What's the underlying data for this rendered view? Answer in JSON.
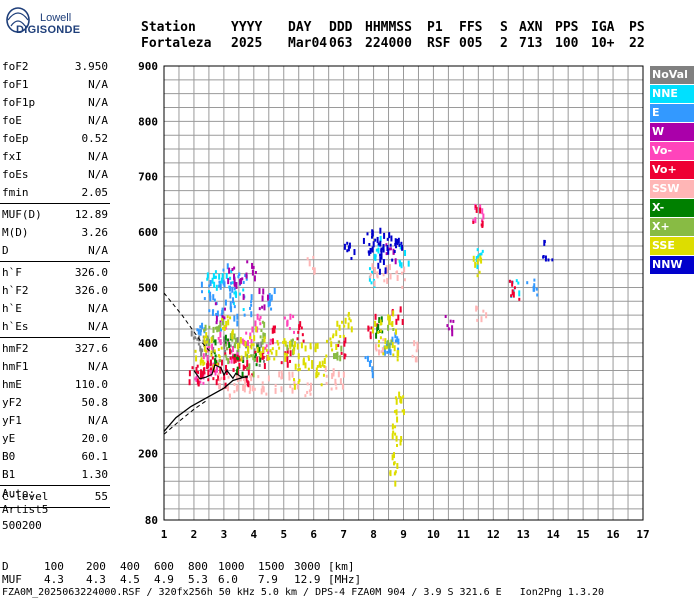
{
  "logo": {
    "line1": "Lowell",
    "line2": "DIGISONDE"
  },
  "header": {
    "labels": [
      "Station",
      "YYYY",
      "DAY",
      "DDD",
      "HHMMSS",
      "P1",
      "FFS",
      "S",
      "AXN",
      "PPS",
      "IGA",
      "PS"
    ],
    "values": [
      "Fortaleza",
      "2025",
      "Mar04",
      "063",
      "224000",
      "RSF",
      "005",
      "2",
      "713",
      "100",
      "10+",
      "22"
    ]
  },
  "params": [
    {
      "label": "foF2",
      "value": "3.950",
      "sep": false
    },
    {
      "label": "foF1",
      "value": "N/A",
      "sep": false
    },
    {
      "label": "foF1p",
      "value": "N/A",
      "sep": false
    },
    {
      "label": "foE",
      "value": "N/A",
      "sep": false
    },
    {
      "label": "foEp",
      "value": "0.52",
      "sep": false
    },
    {
      "label": "fxI",
      "value": "N/A",
      "sep": false
    },
    {
      "label": "foEs",
      "value": "N/A",
      "sep": false
    },
    {
      "label": "fmin",
      "value": "2.05",
      "sep": true
    },
    {
      "label": "MUF(D)",
      "value": "12.89",
      "sep": false
    },
    {
      "label": "M(D)",
      "value": "3.26",
      "sep": false
    },
    {
      "label": "D",
      "value": "N/A",
      "sep": true
    },
    {
      "label": "h`F",
      "value": "326.0",
      "sep": false
    },
    {
      "label": "h`F2",
      "value": "326.0",
      "sep": false
    },
    {
      "label": "h`E",
      "value": "N/A",
      "sep": false
    },
    {
      "label": "h`Es",
      "value": "N/A",
      "sep": true
    },
    {
      "label": "hmF2",
      "value": "327.6",
      "sep": false
    },
    {
      "label": "hmF1",
      "value": "N/A",
      "sep": false
    },
    {
      "label": "hmE",
      "value": "110.0",
      "sep": false
    },
    {
      "label": "yF2",
      "value": "50.8",
      "sep": false
    },
    {
      "label": "yF1",
      "value": "N/A",
      "sep": false
    },
    {
      "label": "yE",
      "value": "20.0",
      "sep": false
    },
    {
      "label": "B0",
      "value": "60.1",
      "sep": false
    },
    {
      "label": "B1",
      "value": "1.30",
      "sep": true
    },
    {
      "label": "C-level",
      "value": "55",
      "sep": true
    }
  ],
  "auto": [
    "Auto:",
    "Artist5",
    "500200"
  ],
  "legend": [
    {
      "label": "NoVal",
      "color": "#808080"
    },
    {
      "label": "NNE",
      "color": "#00e0ff"
    },
    {
      "label": "E",
      "color": "#3399ff"
    },
    {
      "label": "W",
      "color": "#aa00aa"
    },
    {
      "label": "Vo-",
      "color": "#ff44bb"
    },
    {
      "label": "Vo+",
      "color": "#ee0033"
    },
    {
      "label": "SSW",
      "color": "#ffb6b6"
    },
    {
      "label": "X-",
      "color": "#008000"
    },
    {
      "label": "X+",
      "color": "#88bb44"
    },
    {
      "label": "SSE",
      "color": "#dddd00"
    },
    {
      "label": "NNW",
      "color": "#0000cc"
    }
  ],
  "bottom": {
    "d_label": "D",
    "d_values": [
      "100",
      "200",
      "400",
      "600",
      "800",
      "1000",
      "1500",
      "3000",
      "[km]"
    ],
    "muf_label": "MUF",
    "muf_values": [
      "4.3",
      "4.3",
      "4.5",
      "4.9",
      "5.3",
      "6.0",
      "7.9",
      "12.9",
      "[MHz]"
    ]
  },
  "footer": "FZA0M_2025063224000.RSF / 320fx256h 50 kHz 5.0 km / DPS-4 FZA0M 904 / 3.9 S 321.6 E   Ion2Png 1.3.20",
  "chart_data": {
    "type": "scatter",
    "xlim": [
      1,
      17
    ],
    "ylim": [
      80,
      900
    ],
    "x_ticks": [
      1,
      2,
      3,
      4,
      5,
      6,
      7,
      8,
      9,
      10,
      11,
      12,
      13,
      14,
      15,
      16,
      17
    ],
    "y_ticks": [
      80,
      200,
      300,
      400,
      500,
      600,
      700,
      800,
      900
    ],
    "grid": true,
    "clusters": [
      {
        "name": "NoVal",
        "color": "#808080",
        "points": [
          [
            2.1,
            400
          ],
          [
            2.3,
            395
          ],
          [
            2.5,
            405
          ],
          [
            3.1,
            390
          ],
          [
            3.6,
            385
          ],
          [
            4.2,
            380
          ]
        ]
      },
      {
        "name": "NNE",
        "color": "#00e0ff",
        "points": [
          [
            2.6,
            505
          ],
          [
            2.8,
            510
          ],
          [
            3.2,
            515
          ],
          [
            3.5,
            480
          ],
          [
            8.2,
            570
          ],
          [
            9.0,
            560
          ],
          [
            11.5,
            555
          ],
          [
            12.7,
            495
          ],
          [
            7.9,
            520
          ]
        ]
      },
      {
        "name": "E",
        "color": "#3399ff",
        "points": [
          [
            2.4,
            500
          ],
          [
            2.6,
            470
          ],
          [
            2.8,
            440
          ],
          [
            3.0,
            520
          ],
          [
            3.2,
            490
          ],
          [
            3.4,
            450
          ],
          [
            3.6,
            510
          ],
          [
            3.8,
            470
          ],
          [
            2.2,
            420
          ],
          [
            8.5,
            400
          ],
          [
            8.7,
            395
          ],
          [
            7.8,
            360
          ],
          [
            13.3,
            495
          ],
          [
            4.6,
            480
          ]
        ]
      },
      {
        "name": "W",
        "color": "#aa00aa",
        "points": [
          [
            3.3,
            520
          ],
          [
            3.5,
            500
          ],
          [
            3.9,
            530
          ],
          [
            4.3,
            480
          ],
          [
            2.9,
            455
          ],
          [
            10.5,
            430
          ],
          [
            8.6,
            560
          ]
        ]
      },
      {
        "name": "Vo-",
        "color": "#ff44bb",
        "points": [
          [
            2.5,
            380
          ],
          [
            2.7,
            360
          ],
          [
            3.0,
            420
          ],
          [
            3.3,
            370
          ],
          [
            3.8,
            400
          ],
          [
            4.1,
            440
          ],
          [
            4.4,
            390
          ],
          [
            11.5,
            640
          ],
          [
            5.2,
            430
          ],
          [
            2.2,
            345
          ]
        ]
      },
      {
        "name": "Vo+",
        "color": "#ee0033",
        "points": [
          [
            2.0,
            345
          ],
          [
            2.2,
            340
          ],
          [
            2.4,
            350
          ],
          [
            2.6,
            345
          ],
          [
            2.8,
            355
          ],
          [
            3.0,
            340
          ],
          [
            3.2,
            365
          ],
          [
            3.4,
            375
          ],
          [
            3.6,
            355
          ],
          [
            3.8,
            345
          ],
          [
            4.2,
            370
          ],
          [
            4.6,
            410
          ],
          [
            5.1,
            380
          ],
          [
            5.5,
            420
          ],
          [
            6.9,
            390
          ],
          [
            8.0,
            430
          ],
          [
            8.8,
            450
          ],
          [
            11.5,
            630
          ],
          [
            12.7,
            495
          ]
        ]
      },
      {
        "name": "SSW",
        "color": "#ffb6b6",
        "points": [
          [
            3.0,
            325
          ],
          [
            3.3,
            322
          ],
          [
            3.6,
            328
          ],
          [
            4.0,
            330
          ],
          [
            4.4,
            325
          ],
          [
            4.8,
            330
          ],
          [
            5.3,
            328
          ],
          [
            5.8,
            325
          ],
          [
            6.5,
            335
          ],
          [
            6.9,
            330
          ],
          [
            8.0,
            520
          ],
          [
            8.4,
            525
          ],
          [
            8.9,
            515
          ],
          [
            8.2,
            390
          ],
          [
            9.3,
            385
          ],
          [
            11.6,
            460
          ],
          [
            5.9,
            545
          ]
        ]
      },
      {
        "name": "X-",
        "color": "#008000",
        "points": [
          [
            2.6,
            385
          ],
          [
            3.2,
            400
          ],
          [
            3.5,
            360
          ],
          [
            4.1,
            380
          ],
          [
            8.2,
            430
          ]
        ]
      },
      {
        "name": "X+",
        "color": "#88bb44",
        "points": [
          [
            2.5,
            410
          ],
          [
            2.8,
            420
          ],
          [
            3.0,
            380
          ],
          [
            3.4,
            395
          ],
          [
            3.9,
            360
          ],
          [
            4.3,
            420
          ],
          [
            5.2,
            400
          ],
          [
            6.8,
            390
          ],
          [
            8.5,
            410
          ]
        ]
      },
      {
        "name": "SSE",
        "color": "#dddd00",
        "points": [
          [
            2.2,
            380
          ],
          [
            2.5,
            400
          ],
          [
            2.8,
            375
          ],
          [
            3.1,
            430
          ],
          [
            3.4,
            410
          ],
          [
            3.7,
            390
          ],
          [
            4.0,
            405
          ],
          [
            4.3,
            395
          ],
          [
            4.6,
            385
          ],
          [
            4.9,
            400
          ],
          [
            5.2,
            390
          ],
          [
            5.5,
            380
          ],
          [
            5.8,
            370
          ],
          [
            6.0,
            380
          ],
          [
            6.3,
            360
          ],
          [
            6.6,
            400
          ],
          [
            6.9,
            420
          ],
          [
            7.1,
            440
          ],
          [
            8.1,
            420
          ],
          [
            8.3,
            400
          ],
          [
            8.6,
            440
          ],
          [
            8.8,
            380
          ],
          [
            8.9,
            300
          ],
          [
            8.85,
            280
          ],
          [
            8.8,
            240
          ],
          [
            8.75,
            200
          ],
          [
            8.7,
            160
          ],
          [
            11.5,
            540
          ],
          [
            5.4,
            340
          ],
          [
            6.2,
            345
          ]
        ]
      },
      {
        "name": "NNW",
        "color": "#0000cc",
        "points": [
          [
            7.8,
            585
          ],
          [
            8.0,
            580
          ],
          [
            8.2,
            575
          ],
          [
            8.4,
            585
          ],
          [
            8.6,
            570
          ],
          [
            8.8,
            580
          ],
          [
            7.2,
            565
          ],
          [
            13.8,
            570
          ],
          [
            8.3,
            540
          ]
        ]
      }
    ],
    "trace_profile": [
      [
        3.8,
        340
      ],
      [
        3.3,
        332
      ],
      [
        3.0,
        318
      ],
      [
        2.4,
        300
      ],
      [
        1.9,
        285
      ],
      [
        1.4,
        265
      ],
      [
        1.0,
        240
      ]
    ],
    "dashed_profile_upper": [
      [
        1.0,
        490
      ],
      [
        1.6,
        450
      ],
      [
        2.2,
        405
      ],
      [
        2.6,
        380
      ]
    ],
    "dashed_profile_lower": [
      [
        1.0,
        235
      ],
      [
        1.5,
        258
      ],
      [
        2.0,
        280
      ],
      [
        2.4,
        295
      ]
    ],
    "trace_echo": [
      [
        2.0,
        350
      ],
      [
        2.2,
        335
      ],
      [
        2.4,
        338
      ],
      [
        2.6,
        343
      ],
      [
        2.7,
        360
      ],
      [
        2.9,
        355
      ],
      [
        3.0,
        342
      ],
      [
        3.1,
        350
      ],
      [
        3.3,
        336
      ],
      [
        3.4,
        345
      ],
      [
        3.6,
        338
      ],
      [
        3.8,
        338
      ]
    ]
  }
}
